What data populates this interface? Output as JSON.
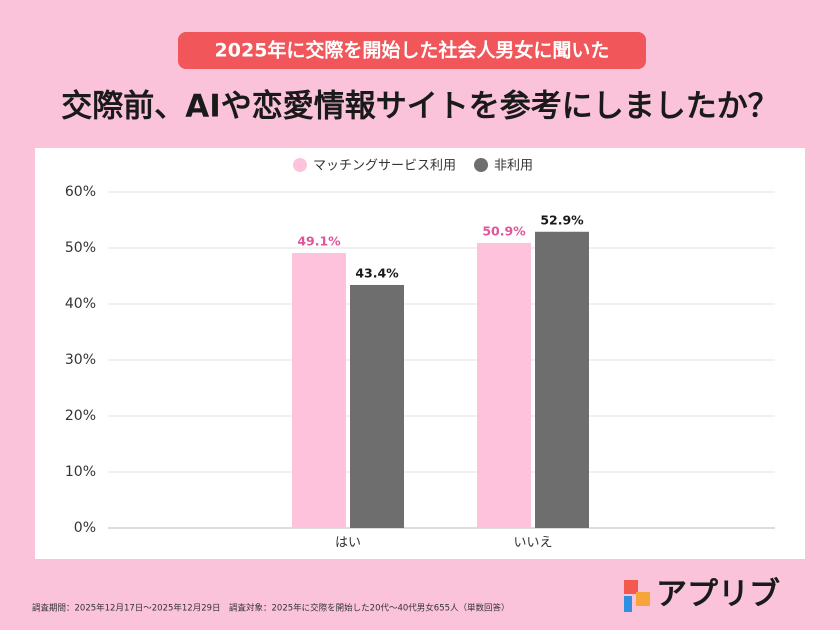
{
  "chart_data": {
    "type": "bar",
    "subtitle": "2025年に交際を開始した社会人男女に聞いた",
    "title": "交際前、AIや恋愛情報サイトを参考にしましたか？",
    "categories": [
      "はい",
      "いいえ"
    ],
    "series": [
      {
        "name": "マッチングサービス利用",
        "color": "#ffc2dd",
        "label_color": "#e0569b",
        "values": [
          49.1,
          50.9
        ],
        "value_labels": [
          "49.1%",
          "50.9%"
        ]
      },
      {
        "name": "非利用",
        "color": "#6e6e6e",
        "label_color": "#1a1a1a",
        "values": [
          43.4,
          52.9
        ],
        "value_labels": [
          "43.4%",
          "52.9%"
        ]
      }
    ],
    "ylim": [
      0,
      60
    ],
    "yticks": [
      {
        "value": 0,
        "label": "0%"
      },
      {
        "value": 10,
        "label": "10%"
      },
      {
        "value": 20,
        "label": "20%"
      },
      {
        "value": 30,
        "label": "30%"
      },
      {
        "value": 40,
        "label": "40%"
      },
      {
        "value": 50,
        "label": "50%"
      },
      {
        "value": 60,
        "label": "60%"
      }
    ],
    "grid": true,
    "legend": "top",
    "footnote": "調査期間：2025年12月17日〜2025年12月29日　調査対象：2025年に交際を開始した20代〜40代男女655人（単数回答）",
    "brand": "アプリブ"
  }
}
